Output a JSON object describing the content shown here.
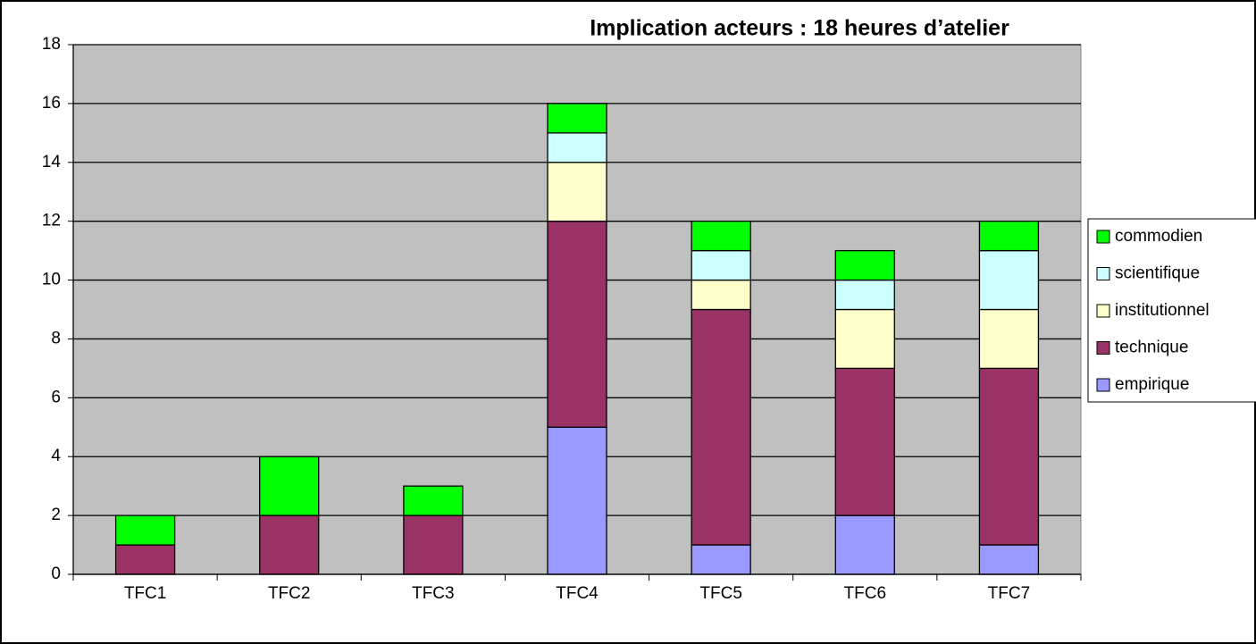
{
  "chart_data": {
    "type": "stacked_bar",
    "title": "Implication acteurs : 18 heures d’atelier",
    "categories": [
      "TFC1",
      "TFC2",
      "TFC3",
      "TFC4",
      "TFC5",
      "TFC6",
      "TFC7"
    ],
    "series": [
      {
        "name": "empirique",
        "color": "#9999ff",
        "values": [
          0,
          0,
          0,
          5,
          1,
          2,
          1
        ]
      },
      {
        "name": "technique",
        "color": "#993366",
        "values": [
          1,
          2,
          2,
          7,
          8,
          5,
          6
        ]
      },
      {
        "name": "institutionnel",
        "color": "#ffffcc",
        "values": [
          0,
          0,
          0,
          2,
          1,
          2,
          2
        ]
      },
      {
        "name": "scientifique",
        "color": "#ccffff",
        "values": [
          0,
          0,
          0,
          1,
          1,
          1,
          2
        ]
      },
      {
        "name": "commodien",
        "color": "#00ff00",
        "values": [
          1,
          2,
          1,
          1,
          1,
          1,
          1
        ]
      }
    ],
    "ylim": [
      0,
      18
    ],
    "yticks": [
      0,
      2,
      4,
      6,
      8,
      10,
      12,
      14,
      16,
      18
    ],
    "grid": true,
    "legend": "right"
  }
}
